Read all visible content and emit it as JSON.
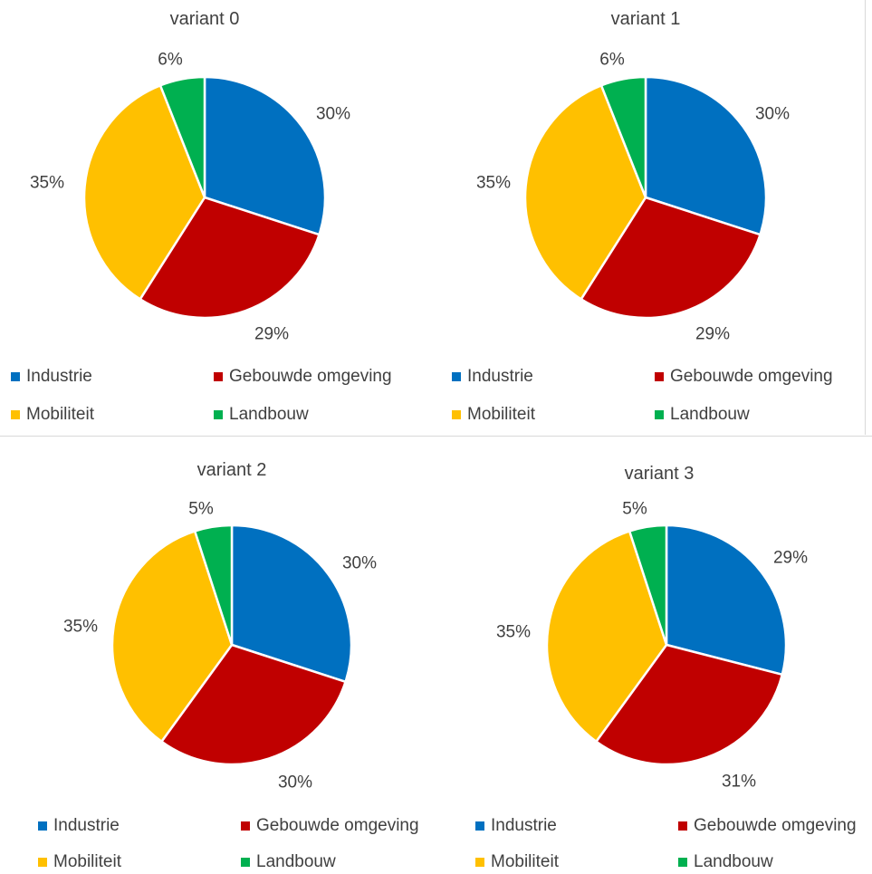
{
  "colors": {
    "Industrie": "#0070c0",
    "Gebouwde omgeving": "#c00000",
    "Mobiliteit": "#ffc000",
    "Landbouw": "#00b050"
  },
  "chart_data": [
    {
      "type": "pie",
      "title": "variant 0",
      "categories": [
        "Industrie",
        "Gebouwde omgeving",
        "Mobiliteit",
        "Landbouw"
      ],
      "values": [
        30,
        29,
        35,
        6
      ],
      "labels": [
        "30%",
        "29%",
        "35%",
        "6%"
      ],
      "legend": [
        "Industrie",
        "Gebouwde omgeving",
        "Mobiliteit",
        "Landbouw"
      ],
      "legend_position": "bottom"
    },
    {
      "type": "pie",
      "title": "variant 1",
      "categories": [
        "Industrie",
        "Gebouwde omgeving",
        "Mobiliteit",
        "Landbouw"
      ],
      "values": [
        30,
        29,
        35,
        6
      ],
      "labels": [
        "30%",
        "29%",
        "35%",
        "6%"
      ],
      "legend": [
        "Industrie",
        "Gebouwde omgeving",
        "Mobiliteit",
        "Landbouw"
      ],
      "legend_position": "bottom"
    },
    {
      "type": "pie",
      "title": "variant 2",
      "categories": [
        "Industrie",
        "Gebouwde omgeving",
        "Mobiliteit",
        "Landbouw"
      ],
      "values": [
        30,
        30,
        35,
        5
      ],
      "labels": [
        "30%",
        "30%",
        "35%",
        "5%"
      ],
      "legend": [
        "Industrie",
        "Gebouwde omgeving",
        "Mobiliteit",
        "Landbouw"
      ],
      "legend_position": "bottom"
    },
    {
      "type": "pie",
      "title": "variant 3",
      "categories": [
        "Industrie",
        "Gebouwde omgeving",
        "Mobiliteit",
        "Landbouw"
      ],
      "values": [
        29,
        31,
        35,
        5
      ],
      "labels": [
        "29%",
        "31%",
        "35%",
        "5%"
      ],
      "legend": [
        "Industrie",
        "Gebouwde omgeving",
        "Mobiliteit",
        "Landbouw"
      ],
      "legend_position": "bottom"
    }
  ]
}
